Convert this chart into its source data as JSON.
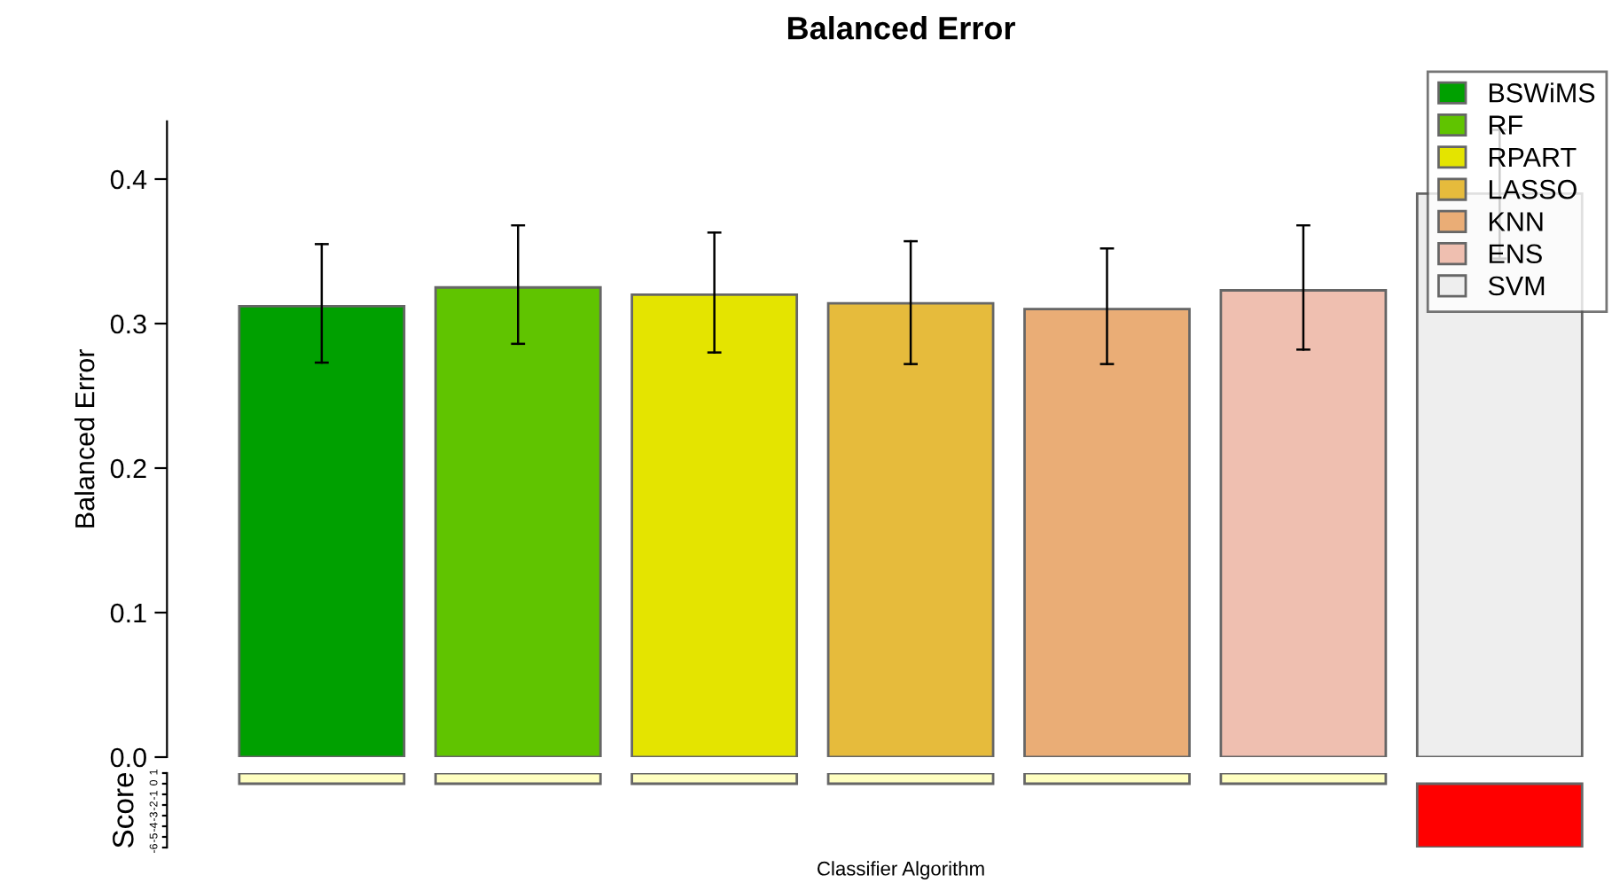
{
  "chart_data": [
    {
      "type": "bar",
      "title": "Balanced Error",
      "ylabel": "Balanced Error",
      "categories": [
        null,
        null,
        null,
        null,
        null,
        null,
        null
      ],
      "series": [
        {
          "name": "BSWiMS",
          "color": "#00a000",
          "values": [
            0.312,
            null,
            null,
            null,
            null,
            null,
            null
          ],
          "errors": [
            [
              0.273,
              0.355
            ],
            null,
            null,
            null,
            null,
            null,
            null
          ]
        },
        {
          "name": "RF",
          "color": "#60c400",
          "values": [
            null,
            0.325,
            null,
            null,
            null,
            null,
            null
          ],
          "errors": [
            null,
            [
              0.286,
              0.368
            ],
            null,
            null,
            null,
            null,
            null
          ]
        },
        {
          "name": "RPART",
          "color": "#e4e400",
          "values": [
            null,
            null,
            0.32,
            null,
            null,
            null,
            null
          ],
          "errors": [
            null,
            null,
            [
              0.28,
              0.363
            ],
            null,
            null,
            null,
            null
          ]
        },
        {
          "name": "LASSO",
          "color": "#e6bb3c",
          "values": [
            null,
            null,
            null,
            0.314,
            null,
            null,
            null
          ],
          "errors": [
            null,
            null,
            null,
            [
              0.272,
              0.357
            ],
            null,
            null,
            null
          ]
        },
        {
          "name": "KNN",
          "color": "#eaad76",
          "values": [
            null,
            null,
            null,
            null,
            0.31,
            null,
            null
          ],
          "errors": [
            null,
            null,
            null,
            null,
            [
              0.272,
              0.352
            ],
            null,
            null
          ]
        },
        {
          "name": "ENS",
          "color": "#efbfb0",
          "values": [
            null,
            null,
            null,
            null,
            null,
            0.323,
            null
          ],
          "errors": [
            null,
            null,
            null,
            null,
            null,
            [
              0.282,
              0.368
            ],
            null
          ]
        },
        {
          "name": "SVM",
          "color": "#eeeeee",
          "values": [
            null,
            null,
            null,
            null,
            null,
            null,
            0.39
          ],
          "errors": [
            null,
            null,
            null,
            null,
            null,
            null,
            [
              0.345,
              0.434
            ]
          ]
        }
      ],
      "stacked": true,
      "ylim": [
        0,
        0.44
      ],
      "yticks": [
        {
          "value": 0,
          "label": "0.0"
        },
        0.1,
        0.2,
        0.3,
        0.4
      ],
      "legend": "top right",
      "grid": false,
      "tick_labels": "y"
    },
    {
      "type": "bar",
      "ylabel": "Score",
      "xlabel": "Classifier Algorithm",
      "categories": [
        null,
        null,
        null,
        null,
        null,
        null,
        null
      ],
      "values": [
        1,
        1,
        1,
        1,
        1,
        1,
        -6
      ],
      "colors": [
        "#ffffc0",
        "#ffffc0",
        "#ffffc0",
        "#ffffc0",
        "#ffffc0",
        "#ffffc0",
        "#ff0000"
      ],
      "ylim": [
        -6,
        1
      ],
      "yticks": [
        1,
        0,
        -1,
        -2,
        -3,
        -4,
        -5,
        -6
      ],
      "grid": false,
      "tick_labels": "y"
    }
  ]
}
